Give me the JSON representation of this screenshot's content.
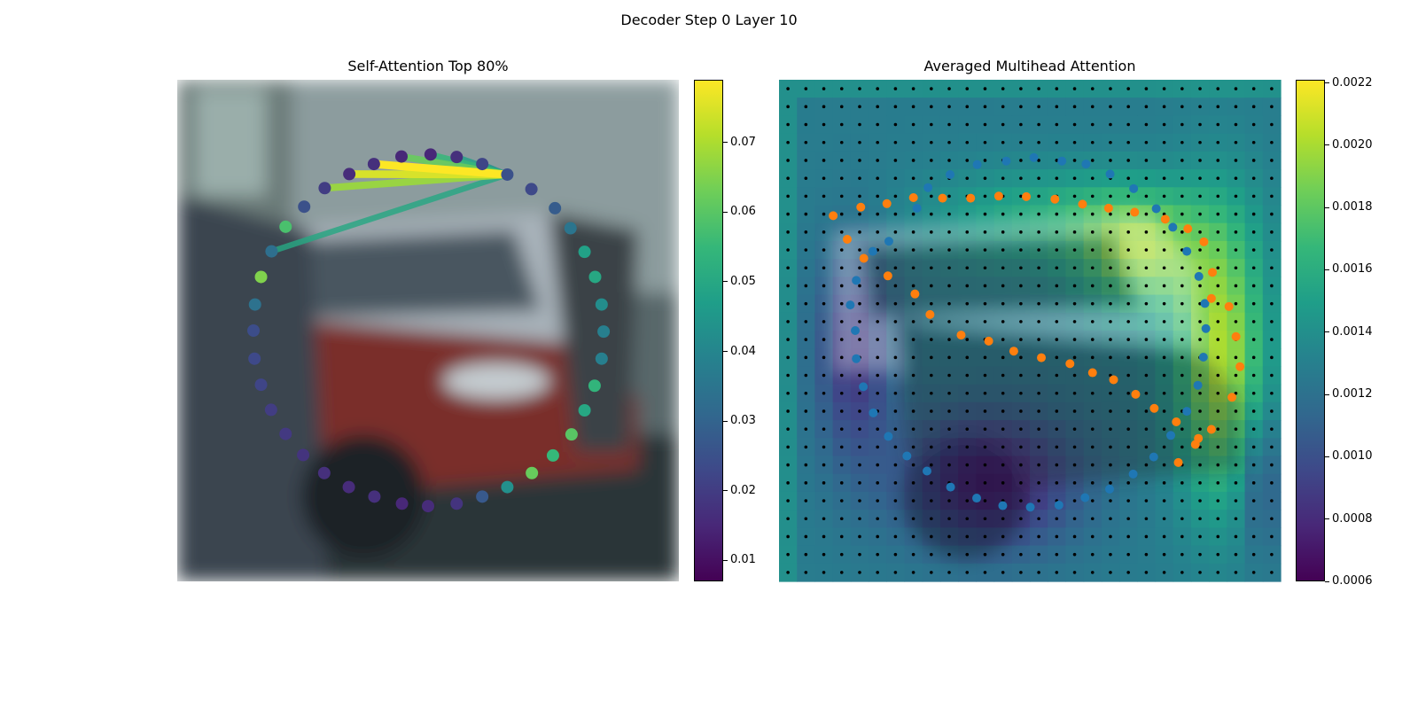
{
  "figure_title": "Decoder Step 0 Layer 10",
  "colors": {
    "viridis": [
      "#440154",
      "#482878",
      "#3e4989",
      "#31688e",
      "#26828e",
      "#1f9e89",
      "#35b779",
      "#6ece58",
      "#b5de2b",
      "#fde725"
    ],
    "blue_points": "#1f77b4",
    "orange_points": "#ff7f0e",
    "grid_dots": "#000000"
  },
  "chart_data": [
    {
      "type": "scatter",
      "title": "Self-Attention Top 80%",
      "background": "blurred photo of parked cars (silver SUV, red car)",
      "colorbar": {
        "cmap": "viridis",
        "range": [
          0.007,
          0.079
        ],
        "ticks": [
          "0.01",
          "0.02",
          "0.03",
          "0.04",
          "0.05",
          "0.06",
          "0.07"
        ]
      },
      "query_point_index": 3,
      "points": [
        {
          "x": 0.505,
          "y": 0.149,
          "v": 0.015
        },
        {
          "x": 0.557,
          "y": 0.154,
          "v": 0.017
        },
        {
          "x": 0.608,
          "y": 0.168,
          "v": 0.022
        },
        {
          "x": 0.658,
          "y": 0.189,
          "v": 0.025
        },
        {
          "x": 0.706,
          "y": 0.218,
          "v": 0.023
        },
        {
          "x": 0.753,
          "y": 0.256,
          "v": 0.028
        },
        {
          "x": 0.784,
          "y": 0.296,
          "v": 0.035
        },
        {
          "x": 0.812,
          "y": 0.343,
          "v": 0.048
        },
        {
          "x": 0.833,
          "y": 0.393,
          "v": 0.05
        },
        {
          "x": 0.846,
          "y": 0.448,
          "v": 0.042
        },
        {
          "x": 0.85,
          "y": 0.502,
          "v": 0.038
        },
        {
          "x": 0.846,
          "y": 0.556,
          "v": 0.038
        },
        {
          "x": 0.832,
          "y": 0.61,
          "v": 0.054
        },
        {
          "x": 0.812,
          "y": 0.659,
          "v": 0.05
        },
        {
          "x": 0.786,
          "y": 0.707,
          "v": 0.06
        },
        {
          "x": 0.749,
          "y": 0.749,
          "v": 0.055
        },
        {
          "x": 0.707,
          "y": 0.784,
          "v": 0.062
        },
        {
          "x": 0.658,
          "y": 0.812,
          "v": 0.043
        },
        {
          "x": 0.608,
          "y": 0.831,
          "v": 0.027
        },
        {
          "x": 0.557,
          "y": 0.845,
          "v": 0.018
        },
        {
          "x": 0.5,
          "y": 0.85,
          "v": 0.016
        },
        {
          "x": 0.448,
          "y": 0.845,
          "v": 0.015
        },
        {
          "x": 0.393,
          "y": 0.831,
          "v": 0.017
        },
        {
          "x": 0.342,
          "y": 0.812,
          "v": 0.016
        },
        {
          "x": 0.293,
          "y": 0.784,
          "v": 0.017
        },
        {
          "x": 0.251,
          "y": 0.748,
          "v": 0.018
        },
        {
          "x": 0.216,
          "y": 0.706,
          "v": 0.019
        },
        {
          "x": 0.187,
          "y": 0.658,
          "v": 0.02
        },
        {
          "x": 0.167,
          "y": 0.608,
          "v": 0.022
        },
        {
          "x": 0.154,
          "y": 0.556,
          "v": 0.023
        },
        {
          "x": 0.152,
          "y": 0.5,
          "v": 0.024
        },
        {
          "x": 0.155,
          "y": 0.448,
          "v": 0.034
        },
        {
          "x": 0.167,
          "y": 0.393,
          "v": 0.065
        },
        {
          "x": 0.188,
          "y": 0.342,
          "v": 0.033
        },
        {
          "x": 0.216,
          "y": 0.293,
          "v": 0.058
        },
        {
          "x": 0.253,
          "y": 0.253,
          "v": 0.025
        },
        {
          "x": 0.294,
          "y": 0.216,
          "v": 0.02
        },
        {
          "x": 0.343,
          "y": 0.188,
          "v": 0.016
        },
        {
          "x": 0.392,
          "y": 0.168,
          "v": 0.017
        },
        {
          "x": 0.447,
          "y": 0.153,
          "v": 0.015
        }
      ],
      "attention_lines": [
        {
          "target": 38,
          "weight": 0.079
        },
        {
          "target": 37,
          "weight": 0.075
        },
        {
          "target": 36,
          "weight": 0.068
        },
        {
          "target": 39,
          "weight": 0.062
        },
        {
          "target": 0,
          "weight": 0.055
        },
        {
          "target": 1,
          "weight": 0.048
        },
        {
          "target": 2,
          "weight": 0.042
        },
        {
          "target": 3,
          "weight": 0.035
        },
        {
          "target": 33,
          "weight": 0.05
        }
      ]
    },
    {
      "type": "heatmap",
      "title": "Averaged Multihead Attention",
      "background": "same photo of parked cars",
      "grid_size": 28,
      "colorbar": {
        "cmap": "viridis",
        "range": [
          0.0006,
          0.00221
        ],
        "ticks": [
          "0.0006",
          "0.0008",
          "0.0010",
          "0.0012",
          "0.0014",
          "0.0016",
          "0.0018",
          "0.0020",
          "0.0022"
        ]
      },
      "blue_points": [
        [
          0.564,
          0.162
        ],
        [
          0.508,
          0.155
        ],
        [
          0.453,
          0.162
        ],
        [
          0.395,
          0.169
        ],
        [
          0.341,
          0.189
        ],
        [
          0.297,
          0.215
        ],
        [
          0.275,
          0.256
        ],
        [
          0.219,
          0.322
        ],
        [
          0.187,
          0.342
        ],
        [
          0.154,
          0.4
        ],
        [
          0.142,
          0.449
        ],
        [
          0.152,
          0.5
        ],
        [
          0.154,
          0.556
        ],
        [
          0.168,
          0.612
        ],
        [
          0.188,
          0.664
        ],
        [
          0.218,
          0.711
        ],
        [
          0.255,
          0.75
        ],
        [
          0.295,
          0.78
        ],
        [
          0.342,
          0.812
        ],
        [
          0.394,
          0.834
        ],
        [
          0.446,
          0.849
        ],
        [
          0.501,
          0.852
        ],
        [
          0.558,
          0.848
        ],
        [
          0.61,
          0.833
        ],
        [
          0.659,
          0.816
        ],
        [
          0.706,
          0.786
        ],
        [
          0.747,
          0.752
        ],
        [
          0.781,
          0.709
        ],
        [
          0.813,
          0.661
        ],
        [
          0.835,
          0.609
        ],
        [
          0.846,
          0.553
        ],
        [
          0.851,
          0.496
        ],
        [
          0.849,
          0.446
        ],
        [
          0.837,
          0.392
        ],
        [
          0.813,
          0.342
        ],
        [
          0.785,
          0.294
        ],
        [
          0.752,
          0.257
        ],
        [
          0.707,
          0.217
        ],
        [
          0.66,
          0.188
        ],
        [
          0.612,
          0.168
        ]
      ],
      "orange_points": [
        [
          0.108,
          0.271
        ],
        [
          0.136,
          0.318
        ],
        [
          0.169,
          0.356
        ],
        [
          0.163,
          0.254
        ],
        [
          0.217,
          0.391
        ],
        [
          0.215,
          0.247
        ],
        [
          0.271,
          0.427
        ],
        [
          0.268,
          0.235
        ],
        [
          0.301,
          0.468
        ],
        [
          0.326,
          0.236
        ],
        [
          0.363,
          0.509
        ],
        [
          0.382,
          0.236
        ],
        [
          0.418,
          0.521
        ],
        [
          0.438,
          0.232
        ],
        [
          0.468,
          0.541
        ],
        [
          0.493,
          0.233
        ],
        [
          0.523,
          0.554
        ],
        [
          0.55,
          0.238
        ],
        [
          0.58,
          0.566
        ],
        [
          0.605,
          0.248
        ],
        [
          0.625,
          0.584
        ],
        [
          0.657,
          0.256
        ],
        [
          0.667,
          0.598
        ],
        [
          0.709,
          0.264
        ],
        [
          0.711,
          0.627
        ],
        [
          0.77,
          0.278
        ],
        [
          0.748,
          0.655
        ],
        [
          0.815,
          0.297
        ],
        [
          0.792,
          0.682
        ],
        [
          0.847,
          0.323
        ],
        [
          0.836,
          0.715
        ],
        [
          0.864,
          0.384
        ],
        [
          0.862,
          0.436
        ],
        [
          0.897,
          0.452
        ],
        [
          0.911,
          0.512
        ],
        [
          0.919,
          0.572
        ],
        [
          0.903,
          0.633
        ],
        [
          0.862,
          0.697
        ],
        [
          0.83,
          0.727
        ],
        [
          0.796,
          0.763
        ]
      ]
    }
  ]
}
